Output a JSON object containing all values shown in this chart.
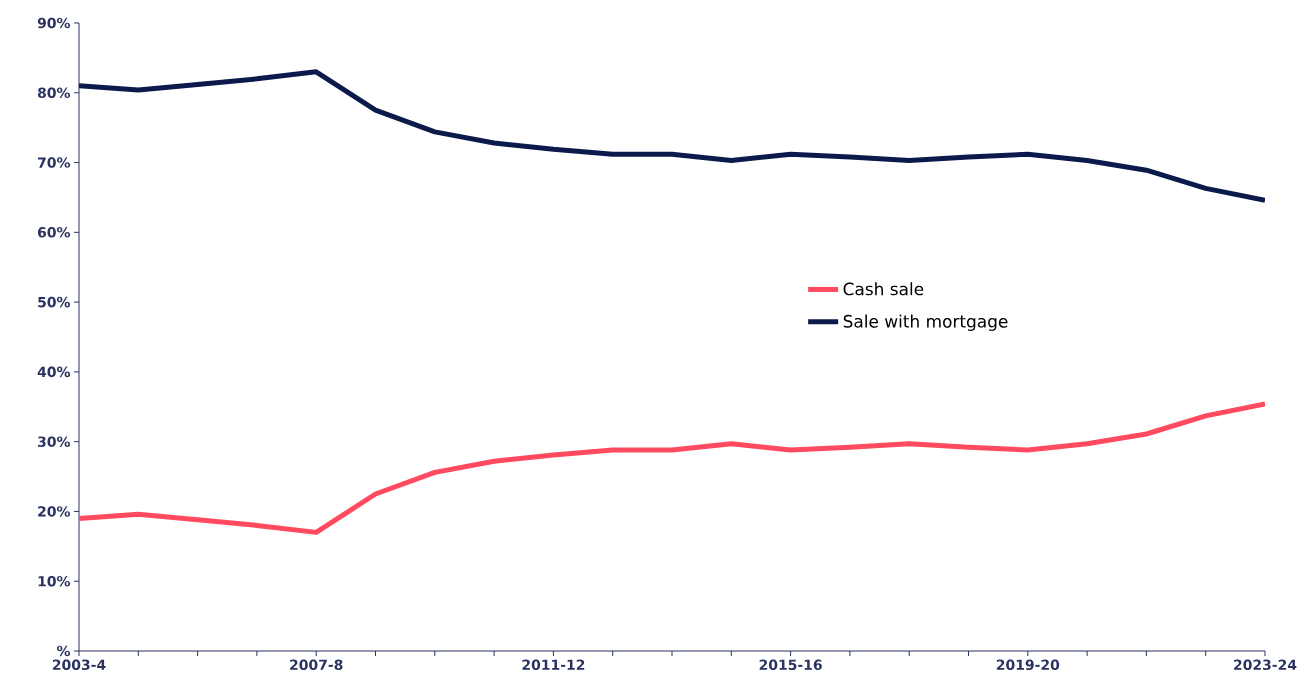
{
  "chart_data": {
    "type": "line",
    "categories": [
      "2003-4",
      null,
      null,
      null,
      "2007-8",
      null,
      null,
      null,
      "2011-12",
      null,
      null,
      null,
      "2015-16",
      null,
      null,
      null,
      "2019-20",
      null,
      null,
      null,
      "2023-24"
    ],
    "series": [
      {
        "name": "Cash sale",
        "color": "#ff4a5f",
        "values": [
          19,
          19.6,
          18.8,
          18,
          17,
          22.5,
          25.6,
          27.2,
          28.1,
          28.8,
          28.8,
          29.7,
          28.8,
          29.2,
          29.7,
          29.2,
          28.8,
          29.7,
          31.1,
          33.7,
          35.4
        ]
      },
      {
        "name": "Sale with mortgage",
        "color": "#0c1a4b",
        "values": [
          81,
          80.4,
          81.2,
          82,
          83,
          77.5,
          74.4,
          72.8,
          71.9,
          71.2,
          71.2,
          70.3,
          71.2,
          70.8,
          70.3,
          70.8,
          71.2,
          70.3,
          68.9,
          66.3,
          64.6
        ]
      }
    ],
    "ylim": [
      0,
      90
    ],
    "yticks": [
      {
        "value": 0,
        "label": "%"
      },
      {
        "value": 10,
        "label": "10%"
      },
      {
        "value": 20,
        "label": "20%"
      },
      {
        "value": 30,
        "label": "30%"
      },
      {
        "value": 40,
        "label": "40%"
      },
      {
        "value": 50,
        "label": "50%"
      },
      {
        "value": 60,
        "label": "60%"
      },
      {
        "value": 70,
        "label": "70%"
      },
      {
        "value": 80,
        "label": "80%"
      },
      {
        "value": 90,
        "label": "90%"
      }
    ],
    "legend": "right",
    "grid": false,
    "marker": "none",
    "line_style": "solid"
  }
}
